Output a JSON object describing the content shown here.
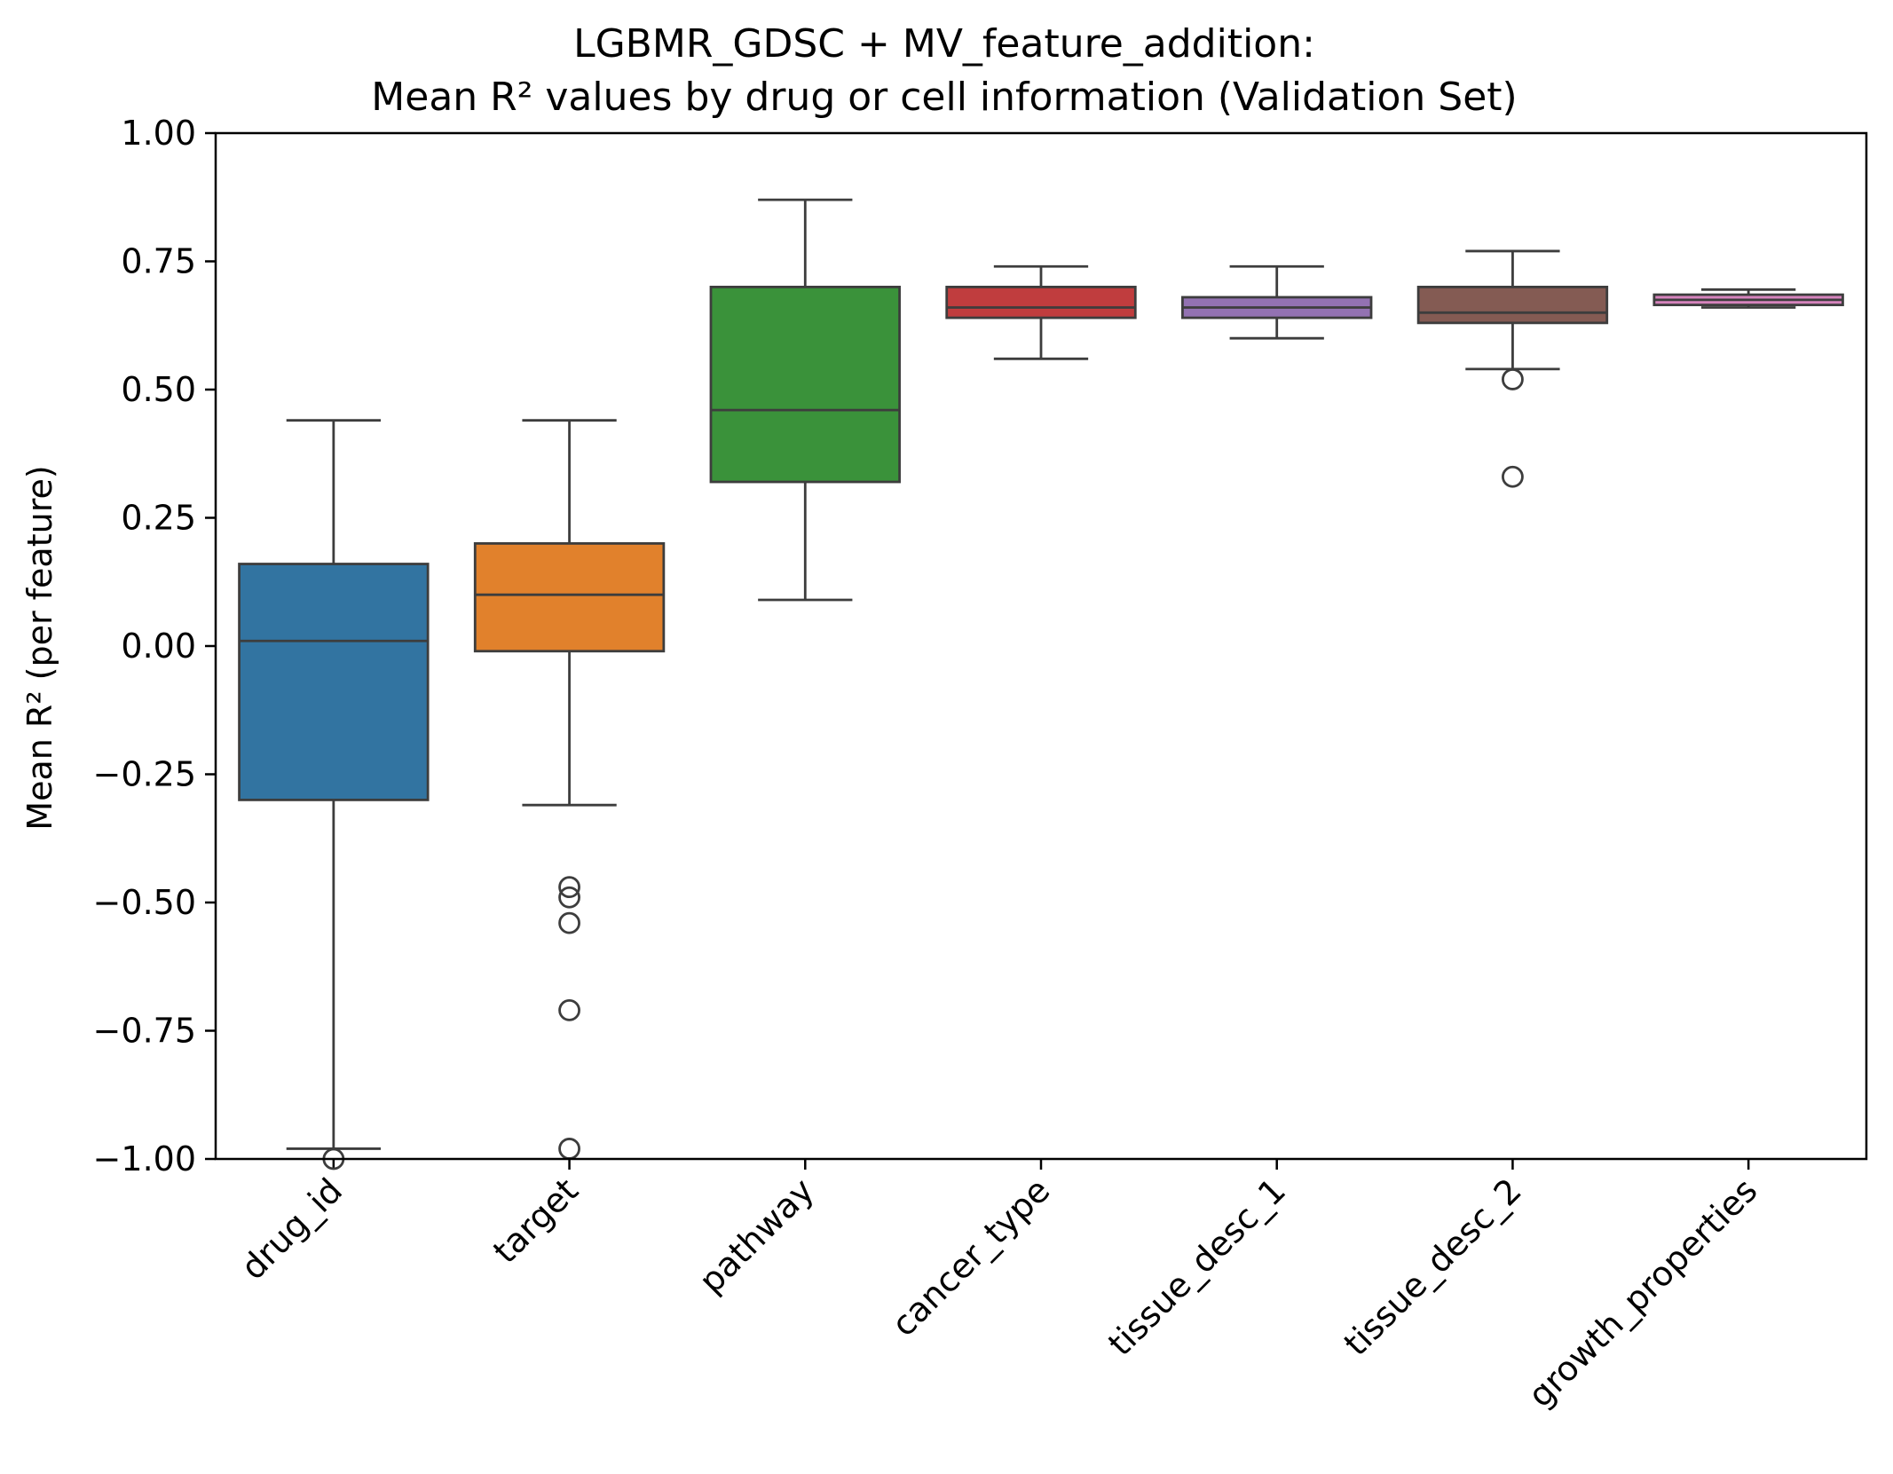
{
  "chart_data": {
    "type": "box",
    "title": [
      "LGBMR_GDSC + MV_feature_addition:",
      "Mean R² values by drug or cell information (Validation Set)"
    ],
    "xlabel": "",
    "ylabel": "Mean R² (per feature)",
    "ylim": [
      -1.0,
      1.0
    ],
    "yticks": [
      -1.0,
      -0.75,
      -0.5,
      -0.25,
      0.0,
      0.25,
      0.5,
      0.75,
      1.0
    ],
    "ytick_labels": [
      "−1.00",
      "−0.75",
      "−0.50",
      "−0.25",
      "0.00",
      "0.25",
      "0.50",
      "0.75",
      "1.00"
    ],
    "grid": false,
    "categories": [
      "drug_id",
      "target",
      "pathway",
      "cancer_type",
      "tissue_desc_1",
      "tissue_desc_2",
      "growth_properties"
    ],
    "boxes": [
      {
        "category": "drug_id",
        "color": "#3274a1",
        "whisker_low": -0.98,
        "q1": -0.3,
        "median": 0.01,
        "q3": 0.16,
        "whisker_high": 0.44,
        "outliers": [
          -1.0
        ]
      },
      {
        "category": "target",
        "color": "#e1812c",
        "whisker_low": -0.31,
        "q1": -0.01,
        "median": 0.1,
        "q3": 0.2,
        "whisker_high": 0.44,
        "outliers": [
          -0.47,
          -0.49,
          -0.54,
          -0.71,
          -0.98
        ]
      },
      {
        "category": "pathway",
        "color": "#3a923a",
        "whisker_low": 0.09,
        "q1": 0.32,
        "median": 0.46,
        "q3": 0.7,
        "whisker_high": 0.87,
        "outliers": []
      },
      {
        "category": "cancer_type",
        "color": "#c03d3e",
        "whisker_low": 0.56,
        "q1": 0.64,
        "median": 0.66,
        "q3": 0.7,
        "whisker_high": 0.74,
        "outliers": []
      },
      {
        "category": "tissue_desc_1",
        "color": "#9372b2",
        "whisker_low": 0.6,
        "q1": 0.64,
        "median": 0.66,
        "q3": 0.68,
        "whisker_high": 0.74,
        "outliers": []
      },
      {
        "category": "tissue_desc_2",
        "color": "#845b53",
        "whisker_low": 0.54,
        "q1": 0.63,
        "median": 0.65,
        "q3": 0.7,
        "whisker_high": 0.77,
        "outliers": [
          0.52,
          0.33
        ]
      },
      {
        "category": "growth_properties",
        "color": "#d684bd",
        "whisker_low": 0.66,
        "q1": 0.665,
        "median": 0.675,
        "q3": 0.685,
        "whisker_high": 0.695,
        "outliers": []
      }
    ],
    "line_color": "#3d3d3d"
  }
}
